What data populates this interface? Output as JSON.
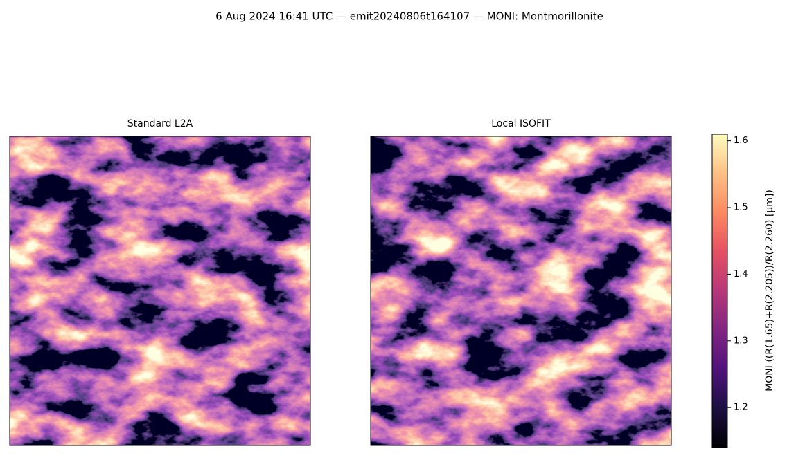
{
  "chart_data": {
    "type": "image",
    "title": "6 Aug 2024 16:41 UTC — emit20240806t164107 — MONI: Montmorillonite",
    "panels": [
      {
        "title": "Standard L2A"
      },
      {
        "title": "Local ISOFIT"
      }
    ],
    "colorbar": {
      "label": "MONI  ((R(1.65)+R(2.205))/R(2.260)  [µm])",
      "colormap": "magma",
      "ylim": [
        1.14,
        1.61
      ],
      "yticks": [
        1.2,
        1.3,
        1.4,
        1.5,
        1.6
      ]
    }
  }
}
